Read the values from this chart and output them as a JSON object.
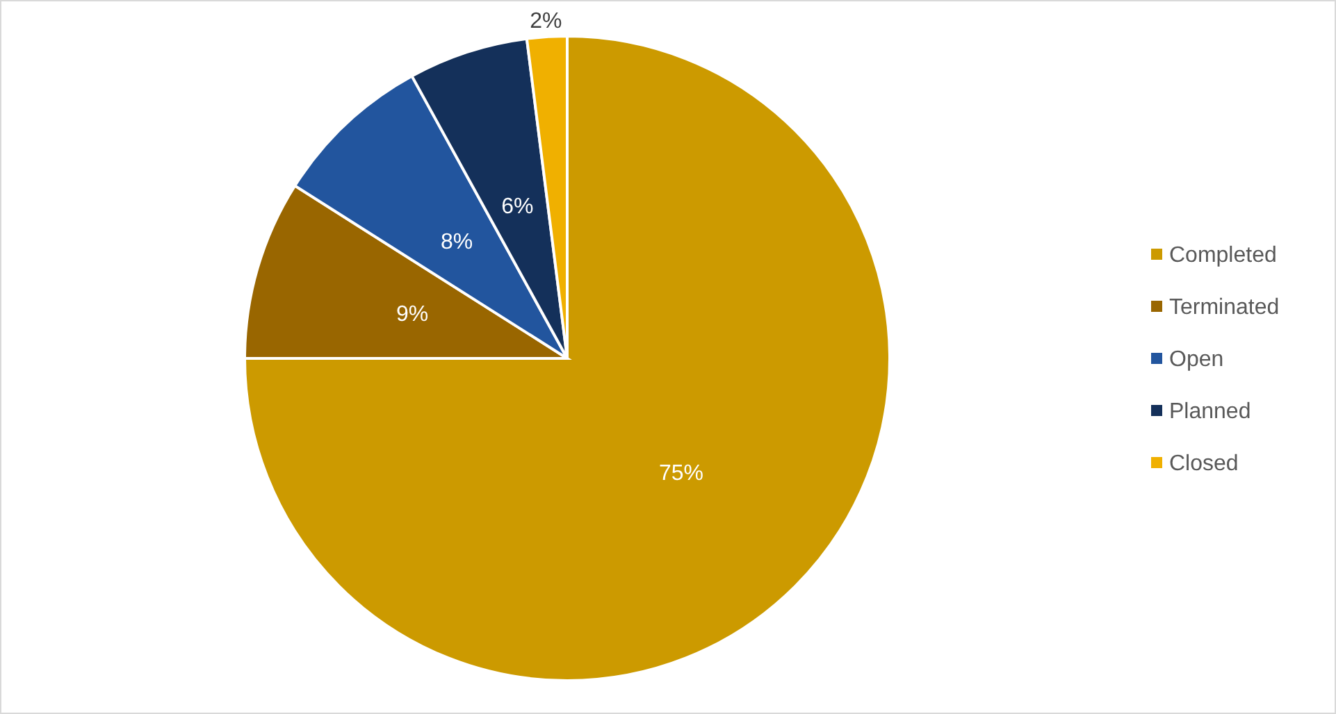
{
  "chart_data": {
    "type": "pie",
    "categories": [
      "Completed",
      "Terminated",
      "Open",
      "Planned",
      "Closed"
    ],
    "values": [
      75,
      9,
      8,
      6,
      2
    ],
    "value_labels": [
      "75%",
      "9%",
      "8%",
      "6%",
      "2%"
    ],
    "colors": [
      "#cc9a00",
      "#996600",
      "#22559e",
      "#14305a",
      "#f0b000"
    ],
    "legend": "right"
  }
}
